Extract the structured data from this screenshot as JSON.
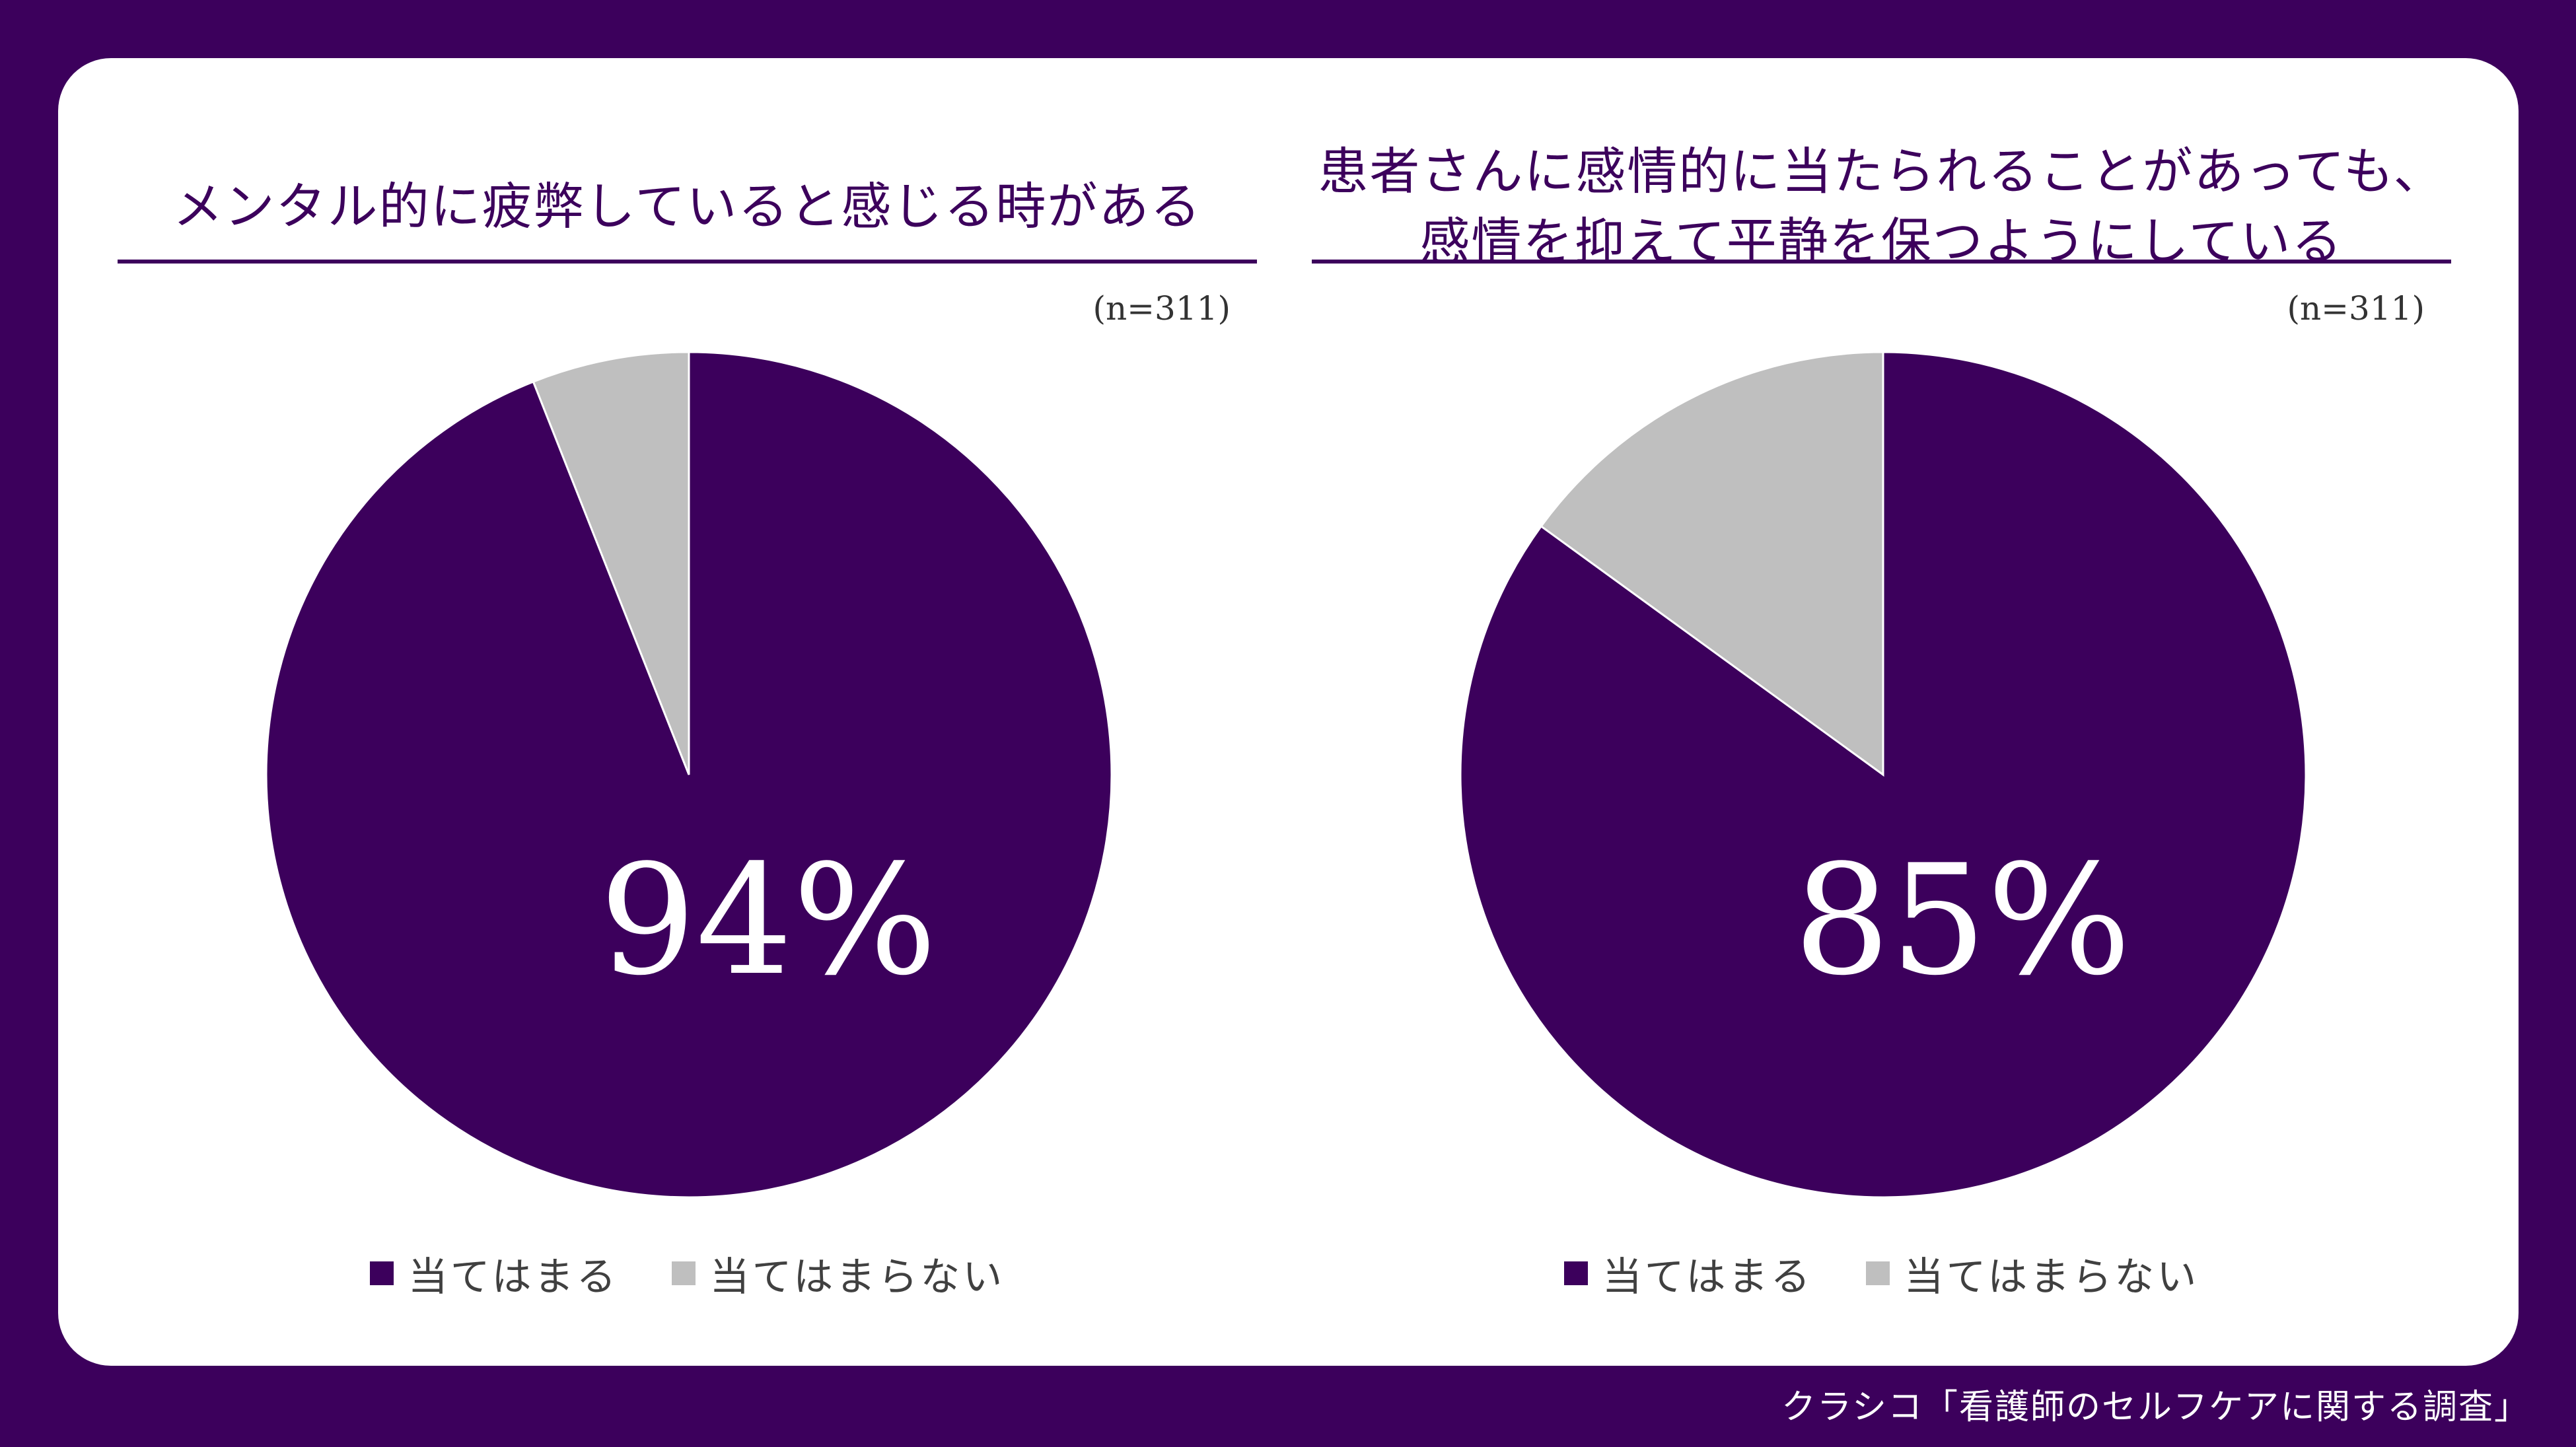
{
  "colors": {
    "background": "#3c005c",
    "applies": "#3c005c",
    "not_applies": "#bfbfbf",
    "card": "#ffffff"
  },
  "chart_data": [
    {
      "type": "pie",
      "title": "メンタル的に疲弊していると感じる時がある",
      "note": "(n=311)",
      "center_label": "94%",
      "categories": [
        "当てはまる",
        "当てはまらない"
      ],
      "values": [
        94,
        6
      ],
      "legend": "bottom"
    },
    {
      "type": "pie",
      "title": "患者さんに感情的に当たられることがあっても、\n感情を抑えて平静を保つようにしている",
      "note": "(n=311)",
      "center_label": "85%",
      "categories": [
        "当てはまる",
        "当てはまらない"
      ],
      "values": [
        85,
        15
      ],
      "legend": "bottom"
    }
  ],
  "source": "クラシコ「看護師のセルフケアに関する調査」"
}
